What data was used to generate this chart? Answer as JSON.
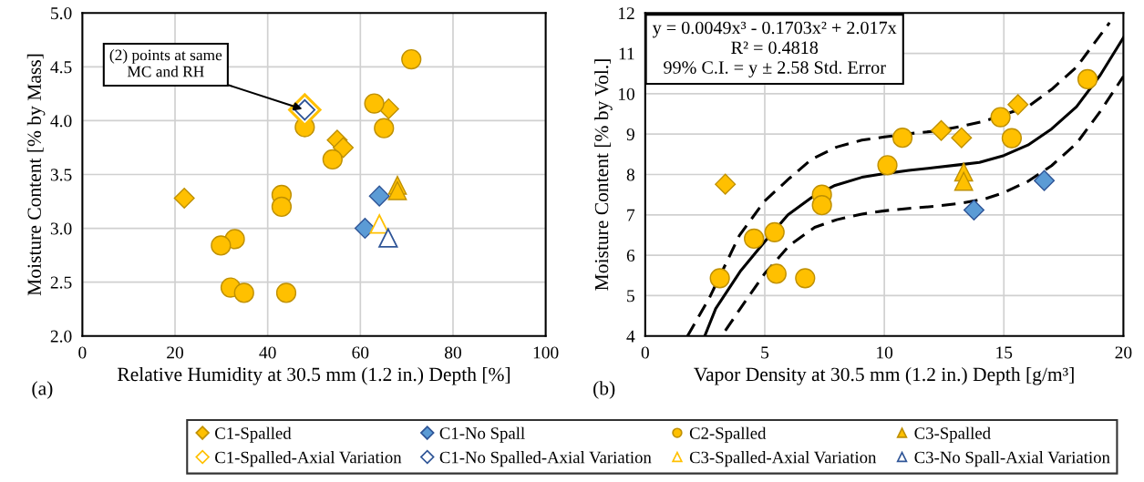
{
  "chart_data": [
    {
      "type": "scatter",
      "xlabel": "Relative Humidity at 30.5 mm (1.2 in.) Depth [%]",
      "ylabel": "Moisture Content [% by Mass]",
      "xlim": [
        0,
        100
      ],
      "xticks": [
        0,
        20,
        40,
        60,
        80,
        100
      ],
      "ylim": [
        2,
        5
      ],
      "yticks": [
        {
          "value": 2,
          "label": "2.0"
        },
        {
          "value": 2.5,
          "label": "2.5"
        },
        {
          "value": 3,
          "label": "3.0"
        },
        {
          "value": 3.5,
          "label": "3.5"
        },
        {
          "value": 4,
          "label": "4.0"
        },
        {
          "value": 4.5,
          "label": "4.5"
        },
        {
          "value": 5,
          "label": "5.0"
        }
      ],
      "grid": true,
      "legend": "bottom",
      "annotations": [
        "(a)",
        {
          "text": "(2) points at same\nMC and RH",
          "x": 48,
          "y": 4.1
        }
      ],
      "series": [
        {
          "name": "C1-Spalled",
          "color": "#ffc000",
          "marker": "diamond",
          "x": [
            22,
            55,
            56.3,
            66.1
          ],
          "values": [
            3.28,
            3.82,
            3.75,
            4.11
          ]
        },
        {
          "name": "C1-No Spall",
          "color": "#5b9bd5",
          "marker": "diamond",
          "x": [
            64.1,
            61
          ],
          "values": [
            3.3,
            3.0
          ]
        },
        {
          "name": "C2-Spalled",
          "color": "#ffc000",
          "marker": "circle",
          "x": [
            71,
            63,
            65.1,
            48,
            54,
            43,
            43,
            32.9,
            29.9,
            32,
            34.9,
            44
          ],
          "values": [
            4.57,
            4.16,
            3.93,
            3.94,
            3.64,
            3.31,
            3.2,
            2.9,
            2.84,
            2.45,
            2.4,
            2.4
          ]
        },
        {
          "name": "C3-Spalled",
          "color": "#ffc000",
          "marker": "triangle",
          "x": [
            68,
            68
          ],
          "values": [
            3.4,
            3.35
          ]
        },
        {
          "name": "C1-Spalled-Axial Variation",
          "color": "#ffc000",
          "marker": "diamond",
          "colors": [
            "#ffffff"
          ],
          "x": [
            48
          ],
          "values": [
            4.1
          ]
        },
        {
          "name": "C1-No Spalled-Axial Variation",
          "color": "#2f5597",
          "marker": "diamond",
          "colors": [
            "#ffffff"
          ],
          "x": [
            48
          ],
          "values": [
            4.1
          ]
        },
        {
          "name": "C3-Spalled-Axial Variation",
          "color": "#ffc000",
          "marker": "triangle",
          "colors": [
            "#ffffff"
          ],
          "x": [
            64.1
          ],
          "values": [
            3.04
          ]
        },
        {
          "name": "C3-No Spall-Axial Variation",
          "color": "#2f5597",
          "marker": "triangle",
          "colors": [
            "#ffffff"
          ],
          "x": [
            66
          ],
          "values": [
            2.91
          ]
        }
      ]
    },
    {
      "type": "scatter",
      "xlabel": "Vapor Density at 30.5 mm (1.2 in.) Depth [g/m³]",
      "ylabel": "Moisture Content [% by Vol.]",
      "xlim": [
        0,
        20
      ],
      "xticks": [
        0,
        5,
        10,
        15,
        20
      ],
      "ylim": [
        4,
        12
      ],
      "yticks": [
        4,
        5,
        6,
        7,
        8,
        9,
        10,
        11,
        12
      ],
      "grid": true,
      "annotations": [
        "(b)",
        "y = 0.0049x³ - 0.1703x² + 2.017x\nR² = 0.4818\n99% C.I. = y ± 2.58 Std. Error"
      ],
      "series": [
        {
          "type": "line",
          "color": "#000000",
          "line_style": "solid",
          "marker": "none",
          "x": [
            2.49,
            2.95,
            4.0,
            4.99,
            5.97,
            6.96,
            7.94,
            9.06,
            10.01,
            11.02,
            12.07,
            13.12,
            13.98,
            15.0,
            16.01,
            17.0,
            18.04,
            19.03,
            20.0
          ],
          "values": [
            4.0,
            4.68,
            5.62,
            6.33,
            7.0,
            7.43,
            7.73,
            7.93,
            8.02,
            8.1,
            8.17,
            8.24,
            8.3,
            8.47,
            8.73,
            9.13,
            9.68,
            10.46,
            11.39
          ]
        },
        {
          "type": "line",
          "color": "#000000",
          "line_style": "dashed",
          "marker": "none",
          "x": [
            1.77,
            2.69,
            3.94,
            4.99,
            6.04,
            6.96,
            8.01,
            9.06,
            10.01,
            11.02,
            12.07,
            13.12,
            14.17,
            16.01,
            17.0,
            18.04,
            19.42
          ],
          "values": [
            4.0,
            4.95,
            6.49,
            7.34,
            7.91,
            8.38,
            8.68,
            8.85,
            8.93,
            9.01,
            9.07,
            9.18,
            9.32,
            9.68,
            10.11,
            10.66,
            11.76
          ]
        },
        {
          "type": "line",
          "color": "#000000",
          "line_style": "dashed",
          "marker": "none",
          "x": [
            3.35,
            4.07,
            4.99,
            6.04,
            7.09,
            8.01,
            9.06,
            10.01,
            11.02,
            12.07,
            13.12,
            14.17,
            15.0,
            16.01,
            17.0,
            18.04,
            19.03,
            20.0
          ],
          "values": [
            4.13,
            4.76,
            5.54,
            6.25,
            6.69,
            6.88,
            7.02,
            7.1,
            7.16,
            7.21,
            7.28,
            7.39,
            7.55,
            7.83,
            8.22,
            8.77,
            9.56,
            10.43
          ]
        },
        {
          "name": "C1-Spalled",
          "color": "#ffc000",
          "marker": "diamond",
          "x": [
            3.35,
            12.38,
            13.23,
            15.59
          ],
          "values": [
            7.76,
            9.09,
            8.91,
            9.73
          ]
        },
        {
          "name": "C1-No Spall",
          "color": "#5b9bd5",
          "marker": "diamond",
          "x": [
            13.75,
            16.69
          ],
          "values": [
            7.12,
            7.85
          ]
        },
        {
          "name": "C2-Spalled",
          "color": "#ffc000",
          "marker": "circle",
          "x": [
            18.5,
            14.86,
            15.33,
            10.76,
            10.13,
            7.39,
            7.39,
            5.41,
            4.55,
            3.12,
            5.49,
            6.69
          ],
          "values": [
            10.36,
            9.42,
            8.9,
            8.91,
            8.23,
            7.5,
            7.24,
            6.57,
            6.41,
            5.43,
            5.54,
            5.43
          ]
        },
        {
          "name": "C3-Spalled",
          "color": "#ffc000",
          "marker": "triangle",
          "x": [
            13.32,
            13.32
          ],
          "values": [
            8.06,
            7.83
          ]
        }
      ]
    }
  ]
}
